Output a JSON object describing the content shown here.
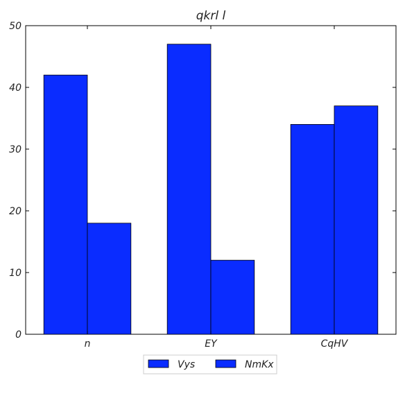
{
  "chart_data": {
    "type": "bar",
    "title": "qkrl l",
    "xlabel": "",
    "ylabel": "",
    "categories": [
      "n",
      "EY",
      "CqHV"
    ],
    "series": [
      {
        "name": "Vys",
        "values": [
          42,
          47,
          34
        ]
      },
      {
        "name": "NmKx",
        "values": [
          18,
          12,
          37
        ]
      }
    ],
    "ylim": [
      0,
      50
    ],
    "yticks": [
      "0",
      "10",
      "20",
      "30",
      "40",
      "50"
    ],
    "grid": false,
    "legend_position": "bottom-center",
    "colors": {
      "bar_fill": "#0a2cff",
      "bar_edge": "#000000",
      "axis": "#000000"
    }
  }
}
